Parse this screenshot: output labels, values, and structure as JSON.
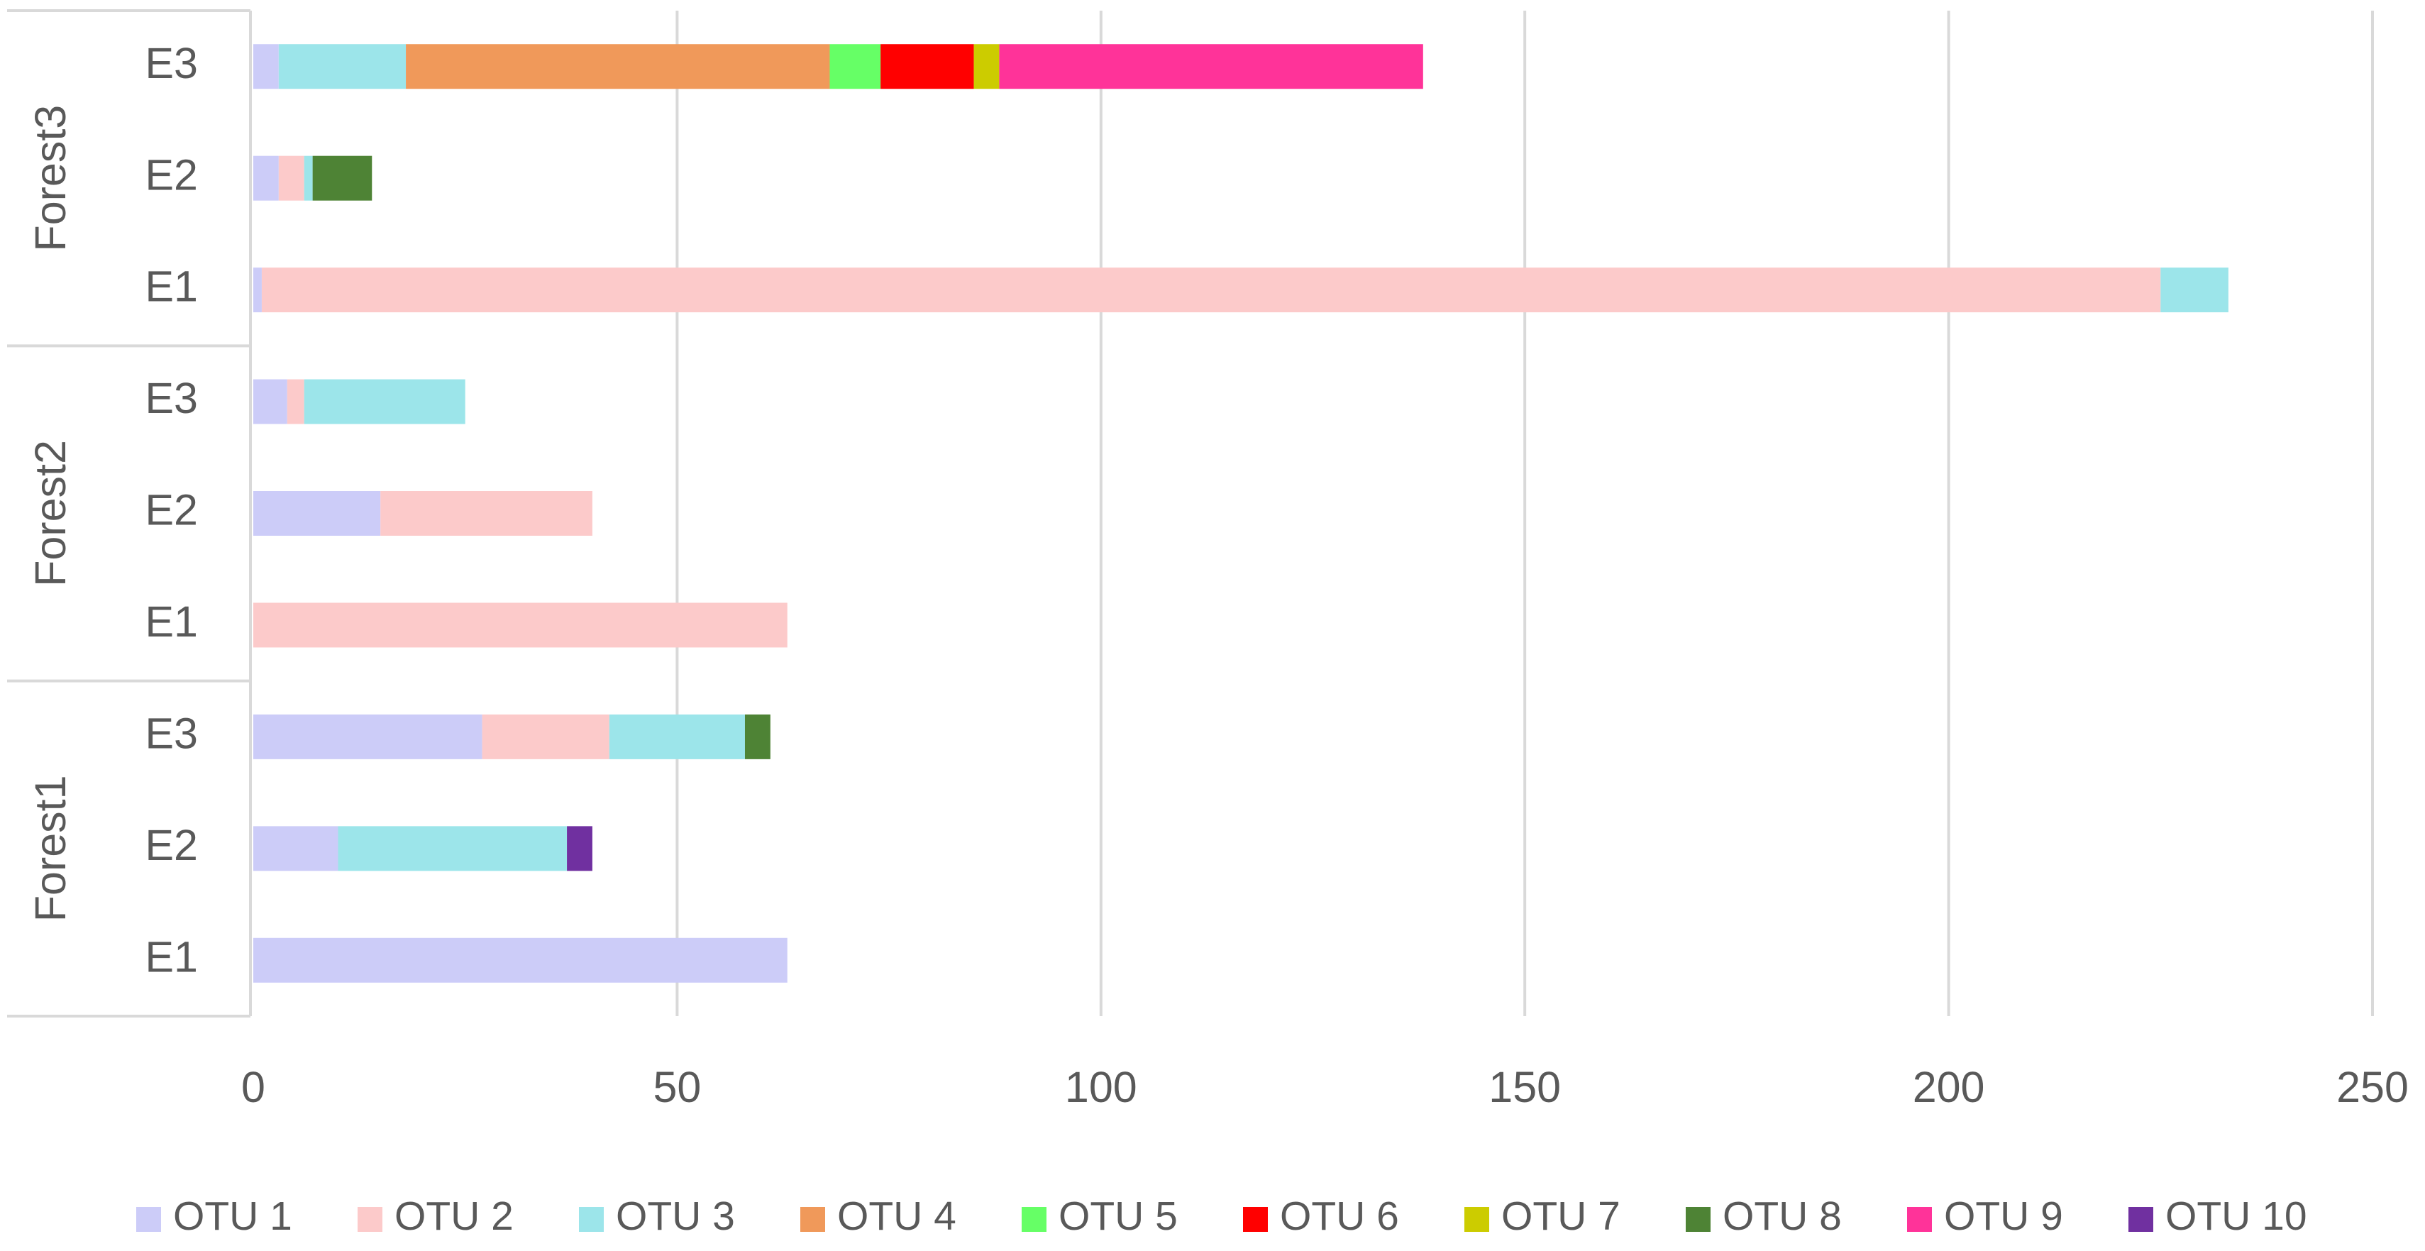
{
  "chart_data": {
    "type": "bar",
    "orientation": "horizontal",
    "stacked": true,
    "categories": [
      "E1",
      "E2",
      "E3",
      "E1",
      "E2",
      "E3",
      "E1",
      "E2",
      "E3"
    ],
    "groups": [
      {
        "label": "Forest1",
        "size": 3
      },
      {
        "label": "Forest2",
        "size": 3
      },
      {
        "label": "Forest3",
        "size": 3
      }
    ],
    "series": [
      {
        "name": "OTU 1",
        "color": "#ccccf8",
        "values": [
          63,
          10,
          27,
          0,
          15,
          4,
          1,
          3,
          3
        ]
      },
      {
        "name": "OTU 2",
        "color": "#fccaca",
        "values": [
          0,
          0,
          15,
          63,
          25,
          2,
          224,
          3,
          0
        ]
      },
      {
        "name": "OTU 3",
        "color": "#9ce5ea",
        "values": [
          0,
          27,
          16,
          0,
          0,
          19,
          8,
          1,
          15
        ]
      },
      {
        "name": "OTU 4",
        "color": "#f0995a",
        "values": [
          0,
          0,
          0,
          0,
          0,
          0,
          0,
          0,
          50
        ]
      },
      {
        "name": "OTU 5",
        "color": "#66ff66",
        "values": [
          0,
          0,
          0,
          0,
          0,
          0,
          0,
          0,
          6
        ]
      },
      {
        "name": "OTU 6",
        "color": "#ff0000",
        "values": [
          0,
          0,
          0,
          0,
          0,
          0,
          0,
          0,
          11
        ]
      },
      {
        "name": "OTU 7",
        "color": "#cccc00",
        "values": [
          0,
          0,
          0,
          0,
          0,
          0,
          0,
          0,
          3
        ]
      },
      {
        "name": "OTU 8",
        "color": "#4e8335",
        "values": [
          0,
          0,
          3,
          0,
          0,
          0,
          0,
          7,
          0
        ]
      },
      {
        "name": "OTU 9",
        "color": "#ff3399",
        "values": [
          0,
          0,
          0,
          0,
          0,
          0,
          0,
          0,
          50
        ]
      },
      {
        "name": "OTU 10",
        "color": "#7030a0",
        "values": [
          0,
          3,
          0,
          0,
          0,
          0,
          0,
          0,
          0
        ]
      }
    ],
    "xlim": [
      0,
      250
    ],
    "xticks": [
      0,
      50,
      100,
      150,
      200,
      250
    ],
    "grid": true,
    "legend": "bottom"
  }
}
